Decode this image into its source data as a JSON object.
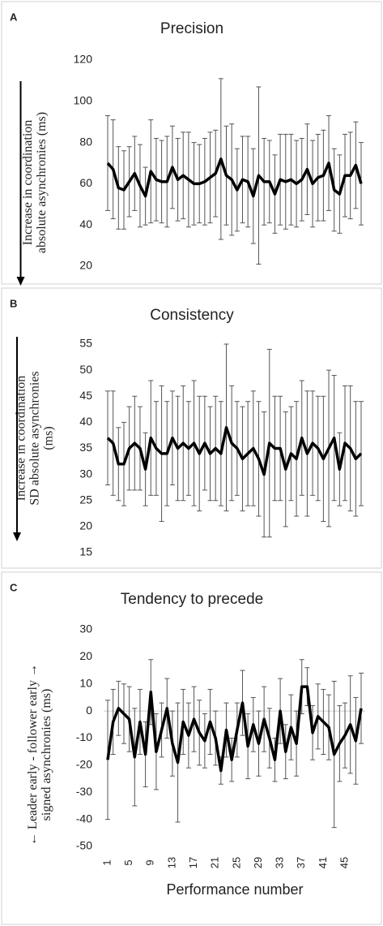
{
  "chart_data": [
    {
      "type": "line",
      "label": "A",
      "title": "Precision",
      "ylabel": [
        "Increase in coordination",
        "absolute asynchronies (ms)"
      ],
      "arrow": true,
      "ylim": [
        20,
        120
      ],
      "yticks": [
        20,
        40,
        60,
        80,
        100,
        120
      ],
      "color": "#000000",
      "error_color": "#555555",
      "values": [
        70,
        67,
        58,
        57,
        61,
        65,
        59,
        54,
        66,
        62,
        61,
        61,
        68,
        62,
        64,
        62,
        60,
        60,
        61,
        63,
        65,
        72,
        64,
        62,
        57,
        62,
        61,
        54,
        64,
        61,
        61,
        55,
        62,
        61,
        62,
        60,
        62,
        67,
        60,
        63,
        64,
        70,
        57,
        55,
        64,
        64,
        69,
        60
      ],
      "errors": [
        23,
        24,
        20,
        19,
        17,
        18,
        20,
        14,
        25,
        20,
        20,
        22,
        20,
        20,
        21,
        23,
        20,
        19,
        21,
        22,
        21,
        39,
        24,
        27,
        20,
        21,
        22,
        23,
        43,
        21,
        20,
        19,
        22,
        23,
        22,
        21,
        20,
        22,
        21,
        21,
        22,
        23,
        20,
        19,
        20,
        21,
        21,
        20
      ]
    },
    {
      "type": "line",
      "label": "B",
      "title": "Consistency",
      "ylabel": [
        "Increase in coordination",
        "SD absolute asynchronies",
        "(ms)"
      ],
      "arrow": true,
      "ylim": [
        15,
        55
      ],
      "yticks": [
        15,
        20,
        25,
        30,
        35,
        40,
        45,
        50,
        55
      ],
      "color": "#000000",
      "error_color": "#555555",
      "values": [
        37,
        36,
        32,
        32,
        35,
        36,
        35,
        31,
        37,
        35,
        34,
        34,
        37,
        35,
        36,
        35,
        36,
        34,
        36,
        34,
        35,
        34,
        39,
        36,
        35,
        33,
        34,
        35,
        33,
        30,
        36,
        35,
        35,
        31,
        34,
        33,
        37,
        34,
        36,
        35,
        33,
        35,
        37,
        31,
        36,
        35,
        33,
        34
      ],
      "errors": [
        9,
        10,
        7,
        8,
        8,
        9,
        8,
        7,
        11,
        9,
        13,
        10,
        9,
        10,
        11,
        9,
        12,
        11,
        9,
        9,
        10,
        10,
        16,
        11,
        9,
        10,
        10,
        11,
        11,
        12,
        18,
        10,
        10,
        11,
        9,
        11,
        11,
        12,
        10,
        10,
        12,
        15,
        12,
        7,
        11,
        12,
        11,
        10
      ]
    },
    {
      "type": "line",
      "label": "C",
      "title": "Tendency to precede",
      "ylabel": [
        "← Leader early - follower early →",
        "signed asynchronies (ms)"
      ],
      "arrow": false,
      "xlabel": "Performance number",
      "zero_line": true,
      "ylim": [
        -50,
        30
      ],
      "yticks": [
        -50,
        -40,
        -30,
        -20,
        -10,
        0,
        10,
        20,
        30
      ],
      "color": "#000000",
      "error_color": "#555555",
      "categories": [
        "1",
        null,
        null,
        null,
        "5",
        null,
        null,
        null,
        "9",
        null,
        null,
        null,
        "13",
        null,
        null,
        null,
        "17",
        null,
        null,
        null,
        "21",
        null,
        null,
        null,
        "25",
        null,
        null,
        null,
        "29",
        null,
        null,
        null,
        "33",
        null,
        null,
        null,
        "37",
        null,
        null,
        null,
        "41",
        null,
        null,
        null,
        "45",
        null,
        null,
        null
      ],
      "values": [
        -18,
        -4,
        1,
        -1,
        -3,
        -17,
        -4,
        -16,
        7,
        -15,
        -7,
        1,
        -12,
        -19,
        -4,
        -9,
        -3,
        -8,
        -11,
        -4,
        -10,
        -22,
        -7,
        -18,
        -7,
        3,
        -13,
        -5,
        -12,
        -3,
        -10,
        -18,
        0,
        -15,
        -6,
        -12,
        9,
        9,
        -8,
        -2,
        -4,
        -6,
        -16,
        -12,
        -9,
        -5,
        -11,
        1
      ],
      "errors": [
        22,
        12,
        10,
        11,
        12,
        18,
        12,
        12,
        12,
        14,
        10,
        11,
        12,
        22,
        12,
        12,
        12,
        12,
        10,
        12,
        10,
        5,
        10,
        8,
        10,
        12,
        12,
        10,
        12,
        12,
        11,
        8,
        12,
        10,
        12,
        12,
        10,
        7,
        10,
        12,
        12,
        12,
        27,
        14,
        12,
        18,
        16,
        13
      ]
    }
  ]
}
